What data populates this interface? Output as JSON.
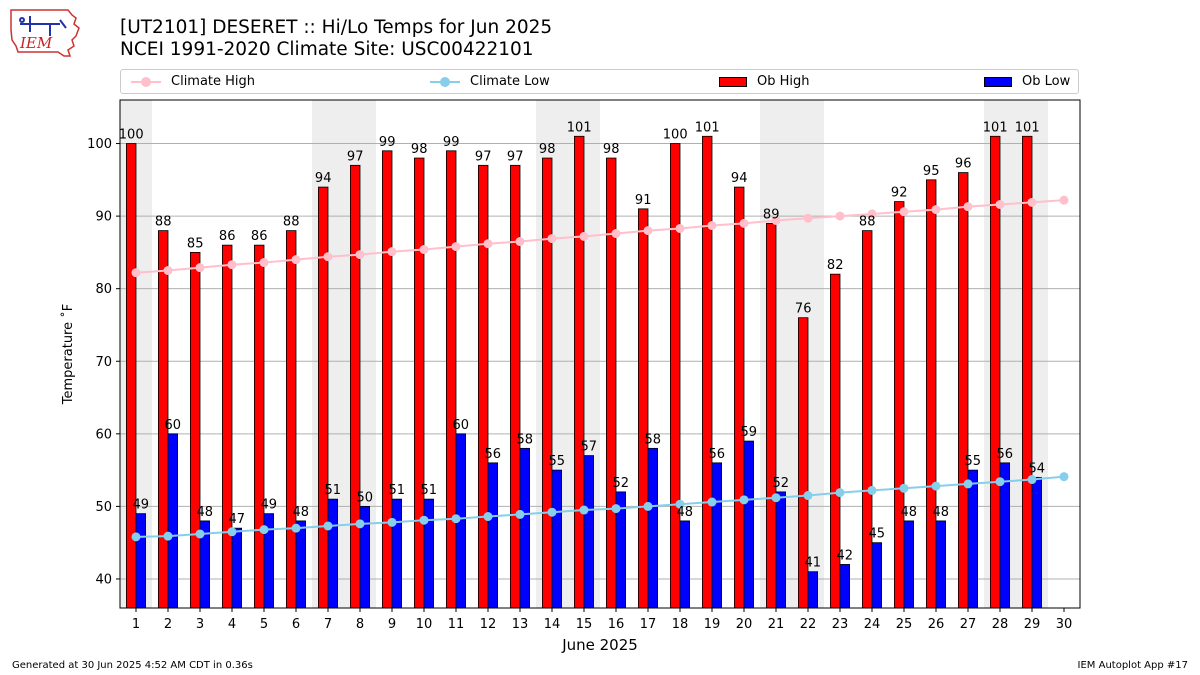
{
  "logo": {
    "text": "IEM",
    "colors": {
      "state": "#ffffff",
      "outline": "#cc3333",
      "icon": "#2233aa",
      "text": "#cc2222"
    }
  },
  "header": {
    "title_line1": "[UT2101] DESERET :: Hi/Lo Temps for Jun 2025",
    "title_line2": "NCEI 1991-2020 Climate Site: USC00422101"
  },
  "legend": {
    "items": [
      {
        "label": "Climate High",
        "kind": "line",
        "color": "#ffc0cb"
      },
      {
        "label": "Climate Low",
        "kind": "line",
        "color": "#87ceeb"
      },
      {
        "label": "Ob High",
        "kind": "bar",
        "color": "#ff0000"
      },
      {
        "label": "Ob Low",
        "kind": "bar",
        "color": "#0000ff"
      }
    ]
  },
  "footer": {
    "left": "Generated at 30 Jun 2025 4:52 AM CDT in 0.36s",
    "right": "IEM Autoplot App #17"
  },
  "chart_data": {
    "type": "bar",
    "xlabel": "June 2025",
    "ylabel": "Temperature ˚F",
    "ylim": [
      36,
      106
    ],
    "yticks": [
      40,
      50,
      60,
      70,
      80,
      90,
      100
    ],
    "grid": "horizontal",
    "legend_position": "top",
    "categories": [
      "1",
      "2",
      "3",
      "4",
      "5",
      "6",
      "7",
      "8",
      "9",
      "10",
      "11",
      "12",
      "13",
      "14",
      "15",
      "16",
      "17",
      "18",
      "19",
      "20",
      "21",
      "22",
      "23",
      "24",
      "25",
      "26",
      "27",
      "28",
      "29",
      "30"
    ],
    "weekend_shading": [
      [
        1,
        1
      ],
      [
        7,
        8
      ],
      [
        14,
        15
      ],
      [
        21,
        22
      ],
      [
        28,
        29
      ]
    ],
    "shade_color": "#eeeeee",
    "bar_series": [
      {
        "name": "Ob High",
        "color": "#ff0000",
        "values": [
          100,
          88,
          85,
          86,
          86,
          88,
          94,
          97,
          99,
          98,
          99,
          97,
          97,
          98,
          101,
          98,
          91,
          100,
          101,
          94,
          89,
          76,
          82,
          88,
          92,
          95,
          96,
          101,
          101,
          null
        ]
      },
      {
        "name": "Ob Low",
        "color": "#0000ff",
        "values": [
          49,
          60,
          48,
          47,
          49,
          48,
          51,
          50,
          51,
          51,
          60,
          56,
          58,
          55,
          57,
          52,
          58,
          48,
          56,
          59,
          52,
          41,
          42,
          45,
          48,
          48,
          55,
          56,
          54,
          null
        ]
      }
    ],
    "line_series": [
      {
        "name": "Climate High",
        "color": "#ffc0cb",
        "values": [
          82.2,
          82.5,
          82.9,
          83.3,
          83.6,
          84.0,
          84.4,
          84.7,
          85.1,
          85.4,
          85.8,
          86.2,
          86.5,
          86.9,
          87.2,
          87.6,
          88.0,
          88.3,
          88.7,
          89.0,
          89.4,
          89.7,
          90.0,
          90.3,
          90.6,
          90.9,
          91.3,
          91.6,
          91.9,
          92.2
        ]
      },
      {
        "name": "Climate Low",
        "color": "#87ceeb",
        "values": [
          45.8,
          45.9,
          46.2,
          46.5,
          46.8,
          47.0,
          47.3,
          47.6,
          47.8,
          48.1,
          48.3,
          48.6,
          48.9,
          49.2,
          49.5,
          49.7,
          50.0,
          50.3,
          50.6,
          50.9,
          51.2,
          51.5,
          51.9,
          52.2,
          52.5,
          52.8,
          53.1,
          53.4,
          53.7,
          54.1
        ]
      }
    ]
  }
}
